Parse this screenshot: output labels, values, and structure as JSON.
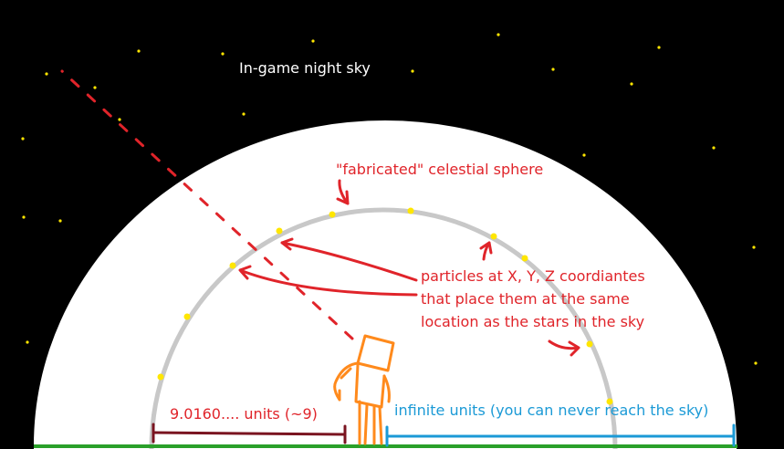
{
  "colors": {
    "background": "#000000",
    "dome": "#ffffff",
    "sphere_ring": "#c8c8c8",
    "star": "#ffe600",
    "annotation": "#e0242a",
    "title_text": "#ffffff",
    "player": "#ff8a1c",
    "ground": "#2aa02a",
    "finite_bracket": "#7a1420",
    "infinite_bracket": "#1b9ad6"
  },
  "labels": {
    "sky_title": "In-game night sky",
    "sphere_title": "\"fabricated\" celestial sphere",
    "particles_line1": "particles at X, Y, Z coordiantes",
    "particles_line2": "that place them at the same",
    "particles_line3": "location as the stars in the sky",
    "finite_distance": "9.0160.... units (~9)",
    "infinite_distance": "infinite units (you can never reach the sky)"
  },
  "icons": {
    "player": "stick-figure-player-icon"
  }
}
